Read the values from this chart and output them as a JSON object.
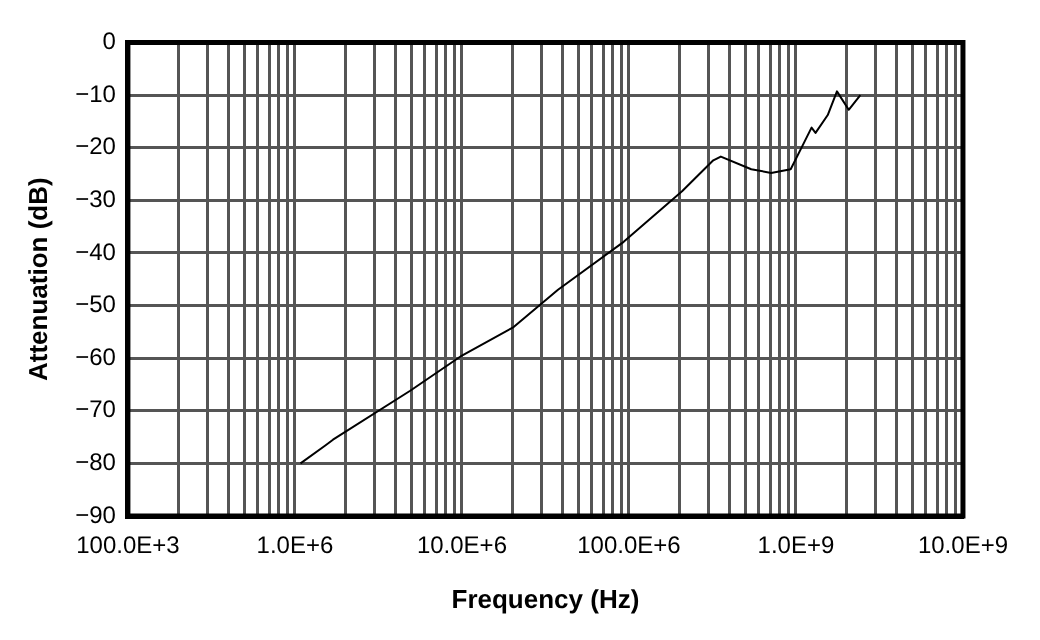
{
  "chart_data": {
    "type": "line",
    "xlabel": "Frequency (Hz)",
    "ylabel": "Attenuation (dB)",
    "log": "x",
    "grid": true,
    "legend": false,
    "marker": "none",
    "line_style": "solid",
    "xlim": [
      100000,
      10000000000
    ],
    "xticks": [
      {
        "value": 100000,
        "label": "100.0E+3"
      },
      {
        "value": 200000,
        "label": null
      },
      {
        "value": 300000,
        "label": null
      },
      {
        "value": 400000,
        "label": null
      },
      {
        "value": 500000,
        "label": null
      },
      {
        "value": 600000,
        "label": null
      },
      {
        "value": 700000,
        "label": null
      },
      {
        "value": 800000,
        "label": null
      },
      {
        "value": 900000,
        "label": null
      },
      {
        "value": 1000000,
        "label": "1.0E+6"
      },
      {
        "value": 2000000,
        "label": null
      },
      {
        "value": 3000000,
        "label": null
      },
      {
        "value": 4000000,
        "label": null
      },
      {
        "value": 5000000,
        "label": null
      },
      {
        "value": 6000000,
        "label": null
      },
      {
        "value": 7000000,
        "label": null
      },
      {
        "value": 8000000,
        "label": null
      },
      {
        "value": 9000000,
        "label": null
      },
      {
        "value": 10000000,
        "label": "10.0E+6"
      },
      {
        "value": 20000000,
        "label": null
      },
      {
        "value": 30000000,
        "label": null
      },
      {
        "value": 40000000,
        "label": null
      },
      {
        "value": 50000000,
        "label": null
      },
      {
        "value": 60000000,
        "label": null
      },
      {
        "value": 70000000,
        "label": null
      },
      {
        "value": 80000000,
        "label": null
      },
      {
        "value": 90000000,
        "label": null
      },
      {
        "value": 100000000,
        "label": "100.0E+6"
      },
      {
        "value": 200000000,
        "label": null
      },
      {
        "value": 300000000,
        "label": null
      },
      {
        "value": 400000000,
        "label": null
      },
      {
        "value": 500000000,
        "label": null
      },
      {
        "value": 600000000,
        "label": null
      },
      {
        "value": 700000000,
        "label": null
      },
      {
        "value": 800000000,
        "label": null
      },
      {
        "value": 900000000,
        "label": null
      },
      {
        "value": 1000000000,
        "label": "1.0E+9"
      },
      {
        "value": 2000000000,
        "label": null
      },
      {
        "value": 3000000000,
        "label": null
      },
      {
        "value": 4000000000,
        "label": null
      },
      {
        "value": 5000000000,
        "label": null
      },
      {
        "value": 6000000000,
        "label": null
      },
      {
        "value": 7000000000,
        "label": null
      },
      {
        "value": 8000000000,
        "label": null
      },
      {
        "value": 9000000000,
        "label": null
      },
      {
        "value": 10000000000,
        "label": "10.0E+9"
      }
    ],
    "ylim": [
      -90,
      0
    ],
    "yticks": [
      {
        "value": -90,
        "label": "−90"
      },
      {
        "value": -80,
        "label": "−80"
      },
      {
        "value": -70,
        "label": "−70"
      },
      {
        "value": -60,
        "label": "−60"
      },
      {
        "value": -50,
        "label": "−50"
      },
      {
        "value": -40,
        "label": "−40"
      },
      {
        "value": -30,
        "label": "−30"
      },
      {
        "value": -20,
        "label": "−20"
      },
      {
        "value": -10,
        "label": "−10"
      },
      {
        "value": 0,
        "label": "0"
      }
    ],
    "series": [
      {
        "color": "#000000",
        "x": [
          1080000,
          1520000,
          1690000,
          4900000,
          10000000,
          20400000,
          37600000,
          93000000,
          208000000,
          320000000,
          355000000,
          540000000,
          710000000,
          930000000,
          1120000000,
          1240000000,
          1310000000,
          1550000000,
          1760000000,
          2070000000,
          2430000000
        ],
        "values": [
          -80,
          -76.6,
          -75.5,
          -66.2,
          -59.5,
          -54.1,
          -47,
          -37.9,
          -28.3,
          -22.4,
          -21.7,
          -24.1,
          -24.8,
          -24.1,
          -19,
          -16.2,
          -17.2,
          -13.8,
          -9.3,
          -12.8,
          -10
        ]
      }
    ]
  }
}
